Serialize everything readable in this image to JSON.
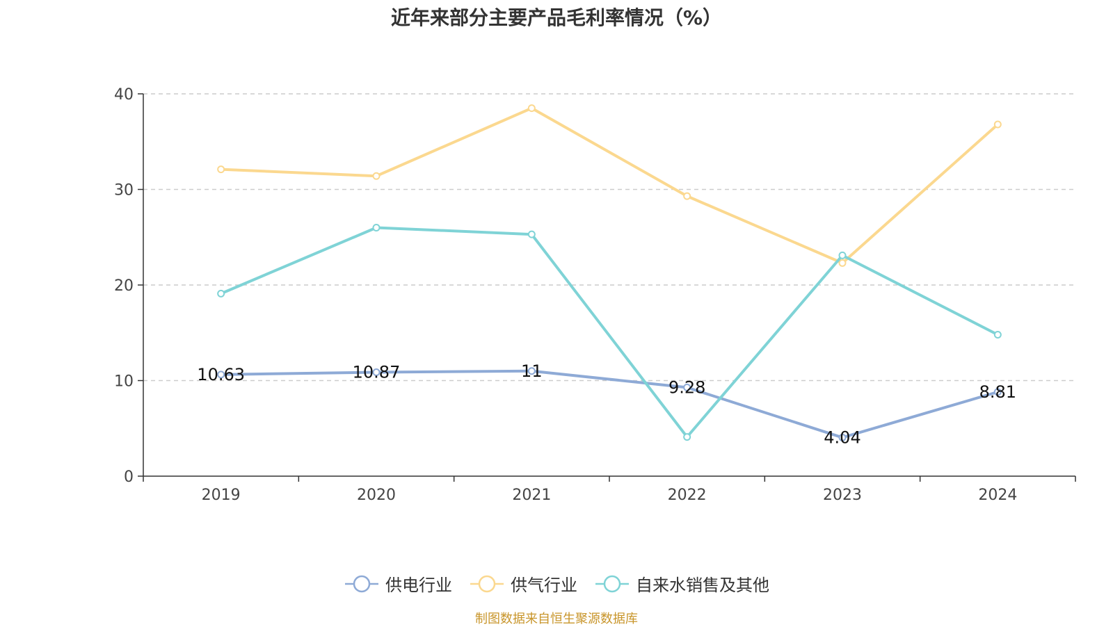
{
  "chart_data": {
    "type": "line",
    "title": "近年来部分主要产品毛利率情况（%）",
    "categories": [
      "2019",
      "2020",
      "2021",
      "2022",
      "2023",
      "2024"
    ],
    "ylim": [
      0,
      40
    ],
    "yticks": [
      0,
      10,
      20,
      30,
      40
    ],
    "grid": true,
    "legend_position": "bottom",
    "series": [
      {
        "name": "供电行业",
        "color": "#8eaad6",
        "values": [
          10.63,
          10.87,
          11,
          9.28,
          4.04,
          8.81
        ],
        "labels": [
          "10.63",
          "10.87",
          "11",
          "9.28",
          "4.04",
          "8.81"
        ]
      },
      {
        "name": "供气行业",
        "color": "#fbd88f",
        "values": [
          32.1,
          31.4,
          38.5,
          29.3,
          22.3,
          36.8
        ],
        "labels": []
      },
      {
        "name": "自来水销售及其他",
        "color": "#7fd3d6",
        "values": [
          19.1,
          26.0,
          25.3,
          4.1,
          23.1,
          14.8
        ],
        "labels": []
      }
    ]
  },
  "footer": {
    "source": "制图数据来自恒生聚源数据库"
  }
}
